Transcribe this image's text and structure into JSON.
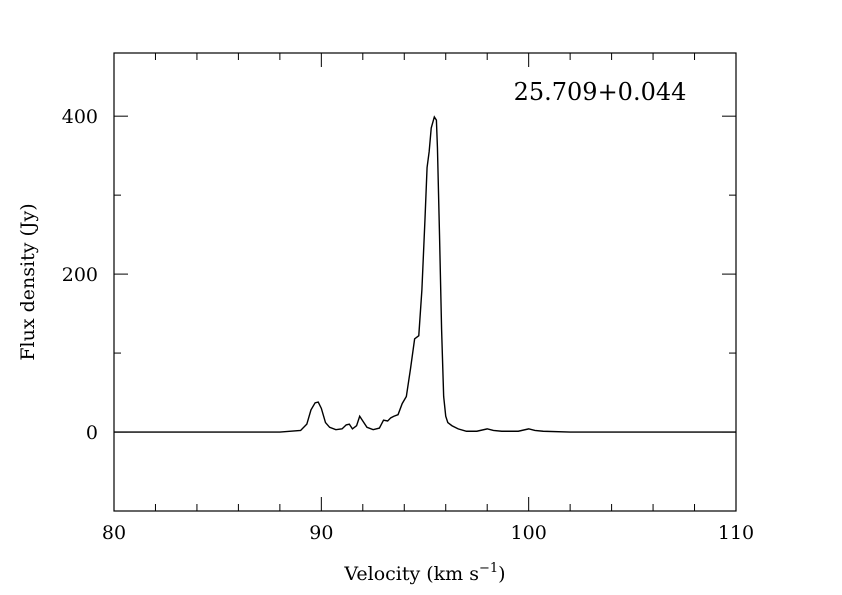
{
  "chart_data": {
    "type": "line",
    "title": "",
    "annotation": "25.709+0.044",
    "xlabel": "Velocity (km s",
    "xlabel_sup": "−1",
    "xlabel_close": ")",
    "ylabel": "Flux density (Jy)",
    "xlim": [
      80,
      110
    ],
    "ylim": [
      -100,
      480
    ],
    "xticks": [
      80,
      90,
      100,
      110
    ],
    "xtick_labels": [
      "80",
      "90",
      "100",
      "110"
    ],
    "yticks": [
      0,
      200,
      400
    ],
    "ytick_labels": [
      "0",
      "200",
      "400"
    ],
    "grid": false,
    "line_color": "#000000",
    "series": [
      {
        "x": [
          80,
          85,
          88,
          89,
          89.3,
          89.5,
          89.7,
          89.85,
          90.0,
          90.2,
          90.4,
          90.7,
          91.0,
          91.2,
          91.35,
          91.5,
          91.7,
          91.85,
          92.0,
          92.2,
          92.5,
          92.8,
          93.0,
          93.2,
          93.35,
          93.5,
          93.7,
          93.9,
          94.1,
          94.3,
          94.5,
          94.7,
          94.85,
          95.0,
          95.1,
          95.2,
          95.3,
          95.45,
          95.55,
          95.6,
          95.7,
          95.8,
          95.9,
          96.0,
          96.1,
          96.3,
          96.6,
          97.0,
          97.5,
          98.0,
          98.3,
          98.7,
          99.5,
          100.0,
          100.3,
          100.7,
          102,
          105,
          108,
          110
        ],
        "y": [
          0,
          0,
          0,
          2,
          10,
          28,
          37,
          38,
          30,
          12,
          6,
          3,
          4,
          9,
          10,
          4,
          8,
          20,
          14,
          6,
          3,
          5,
          15,
          14,
          18,
          20,
          22,
          36,
          45,
          80,
          118,
          122,
          180,
          270,
          335,
          355,
          385,
          399,
          395,
          360,
          250,
          130,
          45,
          20,
          12,
          8,
          4,
          1,
          1,
          4,
          2,
          1,
          1,
          4,
          2,
          1,
          0,
          0,
          0,
          0
        ]
      }
    ]
  }
}
